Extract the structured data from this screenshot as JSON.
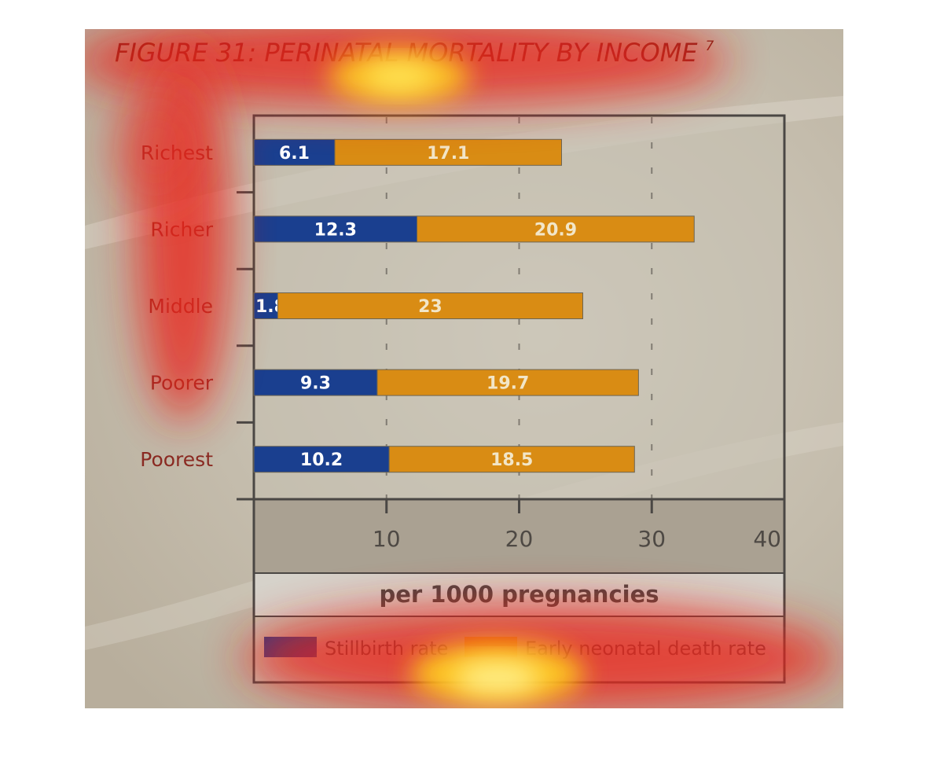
{
  "figure": {
    "title": "FIGURE 31: PERINATAL MORTALITY BY INCOME",
    "title_superscript": "7"
  },
  "chart_data": {
    "type": "bar",
    "stacked": true,
    "orientation": "horizontal",
    "categories": [
      "Richest",
      "Richer",
      "Middle",
      "Poorer",
      "Poorest"
    ],
    "series": [
      {
        "name": "Stillbirth rate",
        "values": [
          6.1,
          12.3,
          1.8,
          9.3,
          10.2
        ],
        "labels": [
          "6.1",
          "12.3",
          "1.8",
          "9.3",
          "10.2"
        ],
        "color": "#1a3f8f"
      },
      {
        "name": "Early neonatal death rate",
        "values": [
          17.1,
          20.9,
          23,
          19.7,
          18.5
        ],
        "labels": [
          "17.1",
          "20.9",
          "23",
          "19.7",
          "18.5"
        ],
        "color": "#d98c14"
      }
    ],
    "xlabel": "per 1000 pregnancies",
    "xlim": [
      0,
      40
    ],
    "xticks": [
      "10",
      "20",
      "30",
      "40"
    ],
    "xtick_values": [
      10,
      20,
      30,
      40
    ],
    "grid": "vertical dashed",
    "legend": "bottom"
  },
  "colors": {
    "background": "#c9c2b2",
    "plot_area": "#c5bfb0",
    "axis_band": "#aaa192",
    "xlabel_band": "#d6d2ca",
    "legend_band": "#c7bfb1",
    "axis": "#4a4744",
    "title": "#7a2018",
    "category_label": "#8a2a22",
    "stillbirth": "#1a3f8f",
    "neonatal": "#d98c14"
  },
  "overlay": "attention heatmap (red/yellow)"
}
